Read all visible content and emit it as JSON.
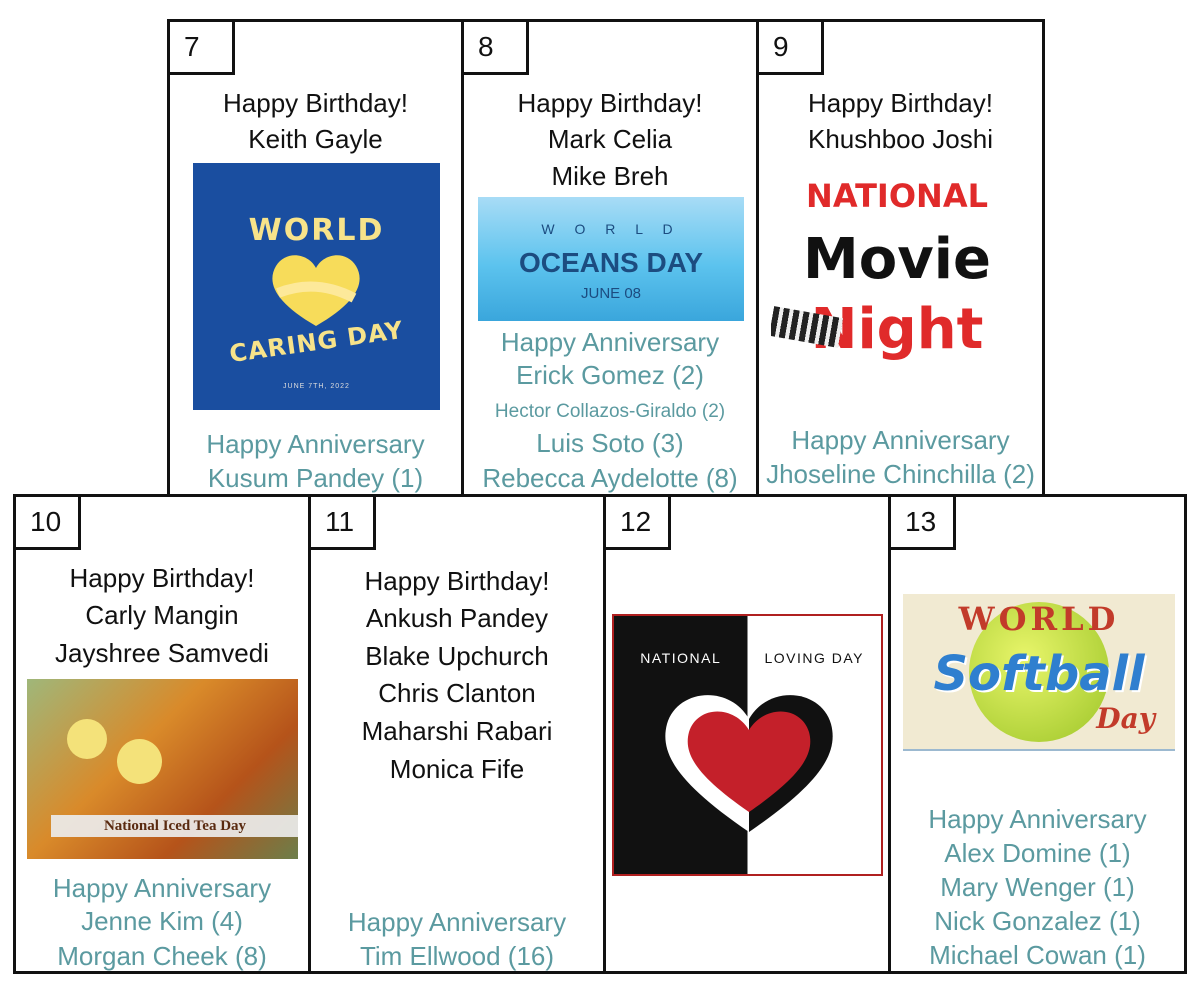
{
  "days": [
    {
      "day": "7",
      "birthday_heading": "Happy Birthday!",
      "birthdays": [
        "Keith Gayle"
      ],
      "image": {
        "title": "WORLD CARING DAY",
        "subtitle": "JUNE 7TH, 2022",
        "bg": "#1a4ea0",
        "fg": "#f7e38a"
      },
      "anniversary_heading": "Happy Anniversary",
      "anniversaries": [
        "Kusum Pandey (1)"
      ]
    },
    {
      "day": "8",
      "birthday_heading": "Happy Birthday!",
      "birthdays": [
        "Mark Celia",
        "Mike Breh"
      ],
      "image": {
        "top": "W O R L D",
        "title": "OCEANS DAY",
        "subtitle": "JUNE 08",
        "bg": "#5cc3ee",
        "fg": "#1c4c80"
      },
      "anniversary_heading": "Happy Anniversary",
      "anniversaries": [
        "Erick Gomez  (2)",
        "Hector Collazos-Giraldo (2)",
        "Luis Soto (3)",
        "Rebecca Aydelotte (8)"
      ]
    },
    {
      "day": "9",
      "birthday_heading": "Happy Birthday!",
      "birthdays": [
        "Khushboo Joshi"
      ],
      "image": {
        "top": "NATIONAL",
        "title": "Movie",
        "subtitle": "Night",
        "fg": "#e02a2a"
      },
      "anniversary_heading": "Happy Anniversary",
      "anniversaries": [
        "Jhoseline Chinchilla (2)"
      ]
    },
    {
      "day": "10",
      "birthday_heading": "Happy Birthday!",
      "birthdays": [
        "Carly Mangin",
        "Jayshree Samvedi"
      ],
      "image": {
        "title": "National Iced Tea Day"
      },
      "anniversary_heading": "Happy Anniversary",
      "anniversaries": [
        "Jenne Kim (4)",
        "Morgan Cheek (8)"
      ]
    },
    {
      "day": "11",
      "birthday_heading": "Happy Birthday!",
      "birthdays": [
        "Ankush Pandey",
        "Blake Upchurch",
        "Chris Clanton",
        "Maharshi Rabari",
        "Monica Fife"
      ],
      "anniversary_heading": "Happy Anniversary",
      "anniversaries": [
        "Tim Ellwood (16)"
      ]
    },
    {
      "day": "12",
      "image": {
        "left": "NATIONAL",
        "right": "LOVING DAY",
        "heart": "#c4202a"
      }
    },
    {
      "day": "13",
      "image": {
        "top": "WORLD",
        "title": "Softball",
        "subtitle": "Day"
      },
      "anniversary_heading": "Happy Anniversary",
      "anniversaries": [
        "Alex Domine (1)",
        "Mary Wenger (1)",
        "Nick Gonzalez (1)",
        "Michael Cowan (1)"
      ]
    }
  ]
}
